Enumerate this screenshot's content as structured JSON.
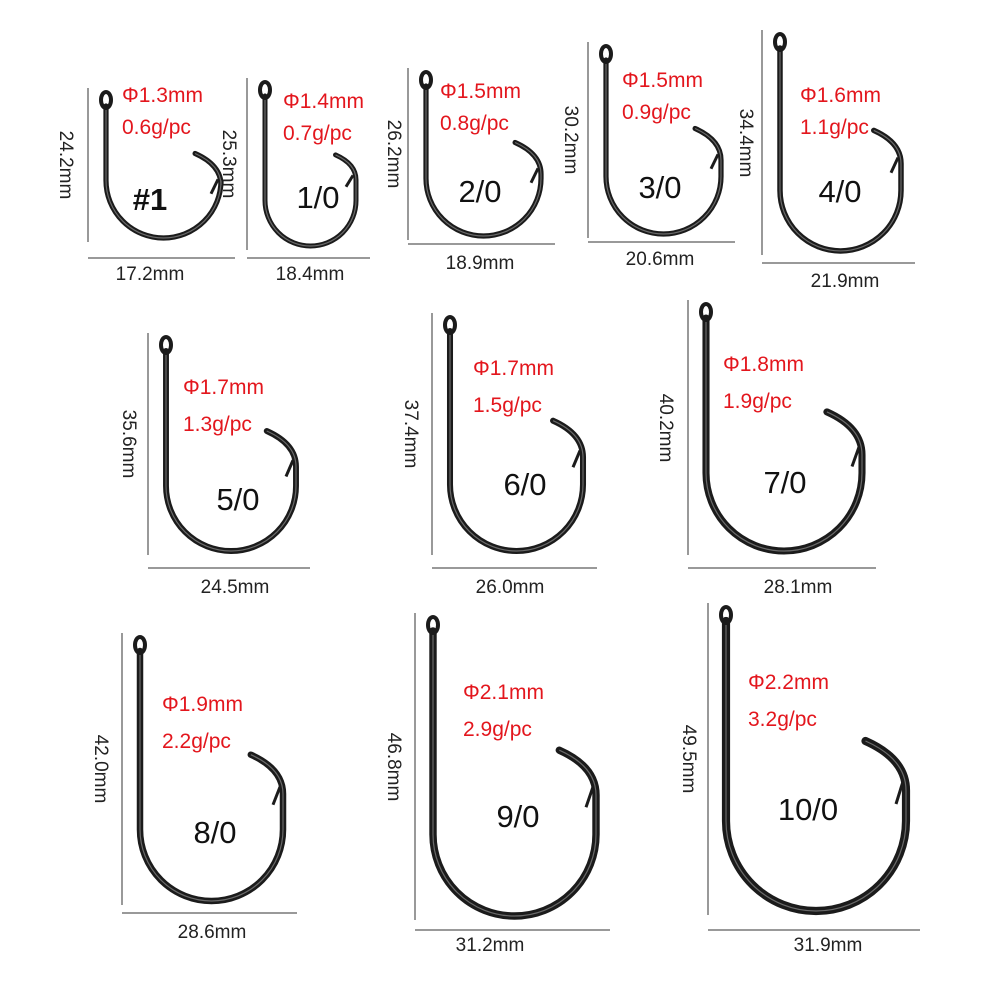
{
  "hooks": [
    {
      "size": "#1",
      "diameter": "Φ1.3mm",
      "weight": "0.6g/pc",
      "length": "24.2mm",
      "width": "17.2mm"
    },
    {
      "size": "1/0",
      "diameter": "Φ1.4mm",
      "weight": "0.7g/pc",
      "length": "25.3mm",
      "width": "18.4mm"
    },
    {
      "size": "2/0",
      "diameter": "Φ1.5mm",
      "weight": "0.8g/pc",
      "length": "26.2mm",
      "width": "18.9mm"
    },
    {
      "size": "3/0",
      "diameter": "Φ1.5mm",
      "weight": "0.9g/pc",
      "length": "30.2mm",
      "width": "20.6mm"
    },
    {
      "size": "4/0",
      "diameter": "Φ1.6mm",
      "weight": "1.1g/pc",
      "length": "34.4mm",
      "width": "21.9mm"
    },
    {
      "size": "5/0",
      "diameter": "Φ1.7mm",
      "weight": "1.3g/pc",
      "length": "35.6mm",
      "width": "24.5mm"
    },
    {
      "size": "6/0",
      "diameter": "Φ1.7mm",
      "weight": "1.5g/pc",
      "length": "37.4mm",
      "width": "26.0mm"
    },
    {
      "size": "7/0",
      "diameter": "Φ1.8mm",
      "weight": "1.9g/pc",
      "length": "40.2mm",
      "width": "28.1mm"
    },
    {
      "size": "8/0",
      "diameter": "Φ1.9mm",
      "weight": "2.2g/pc",
      "length": "42.0mm",
      "width": "28.6mm"
    },
    {
      "size": "9/0",
      "diameter": "Φ2.1mm",
      "weight": "2.9g/pc",
      "length": "46.8mm",
      "width": "31.2mm"
    },
    {
      "size": "10/0",
      "diameter": "Φ2.2mm",
      "weight": "3.2g/pc",
      "length": "49.5mm",
      "width": "31.9mm"
    }
  ],
  "colors": {
    "spec_text": "#e3161d",
    "hook": "#1b1b1b",
    "dimension_line": "#333333"
  }
}
